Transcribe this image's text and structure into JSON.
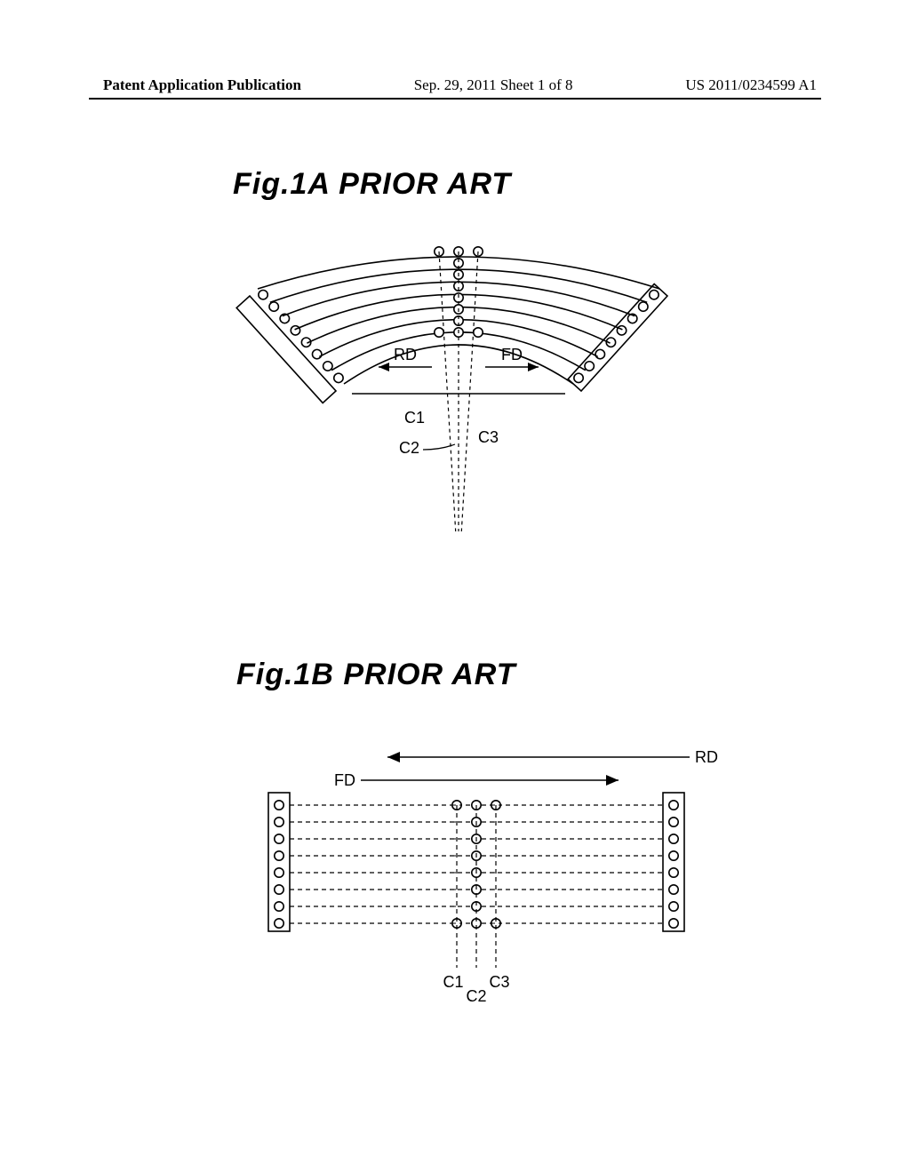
{
  "header": {
    "left": "Patent Application Publication",
    "center": "Sep. 29, 2011  Sheet 1 of 8",
    "right": "US 2011/0234599 A1"
  },
  "fig1a": {
    "title": "Fig.1A   PRIOR  ART",
    "labels": {
      "RD": "RD",
      "FD": "FD",
      "C1": "C1",
      "C2": "C2",
      "C3": "C3"
    },
    "stroke": "#000000",
    "fill_bg": "#ffffff",
    "arc_count": 8,
    "panel_circle_count": 8,
    "top_circle_count": 3,
    "stroke_width": 1.6,
    "circle_r": 5.2
  },
  "fig1b": {
    "title": "Fig.1B   PRIOR  ART",
    "labels": {
      "RD": "RD",
      "FD": "FD",
      "C1": "C1",
      "C2": "C2",
      "C3": "C3"
    },
    "stroke": "#000000",
    "fill_bg": "#ffffff",
    "row_count": 8,
    "top_circle_count": 3,
    "stroke_width": 1.6,
    "circle_r": 5.2,
    "dash": "5,4"
  }
}
